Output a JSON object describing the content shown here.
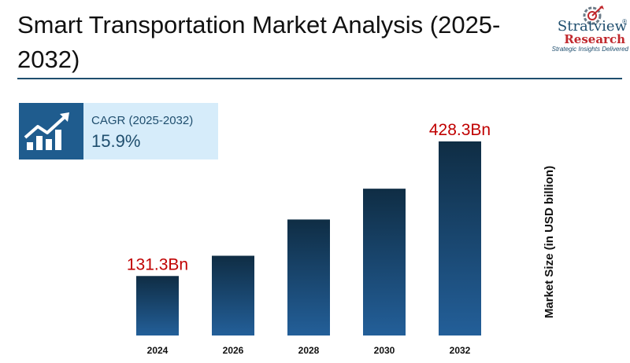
{
  "title": "Smart Transportation Market Analysis (2025-2032)",
  "logo": {
    "name": "Stratview",
    "registered": "®",
    "sub": "Research",
    "tagline": "Strategic Insights Delivered",
    "emblem_icon": "gear-target-icon"
  },
  "cagr": {
    "label": "CAGR (2025-2032)",
    "value": "15.9%",
    "icon": "growth-chart-icon"
  },
  "colors": {
    "bar_top": "#0f2d44",
    "bar_bottom": "#235f99",
    "value_label": "#c00000",
    "accent": "#1f4e6e"
  },
  "chart_data": {
    "type": "bar",
    "categories": [
      "2024",
      "2026",
      "2028",
      "2030",
      "2032"
    ],
    "values": [
      131.3,
      176,
      256,
      324,
      428.3
    ],
    "data_labels": [
      "131.3Bn",
      "",
      "",
      "",
      "428.3Bn"
    ],
    "xlabel": "",
    "ylabel": "Market Size (in USD billion)",
    "ylim": [
      0,
      428.3
    ],
    "grid": false,
    "legend": "none"
  }
}
